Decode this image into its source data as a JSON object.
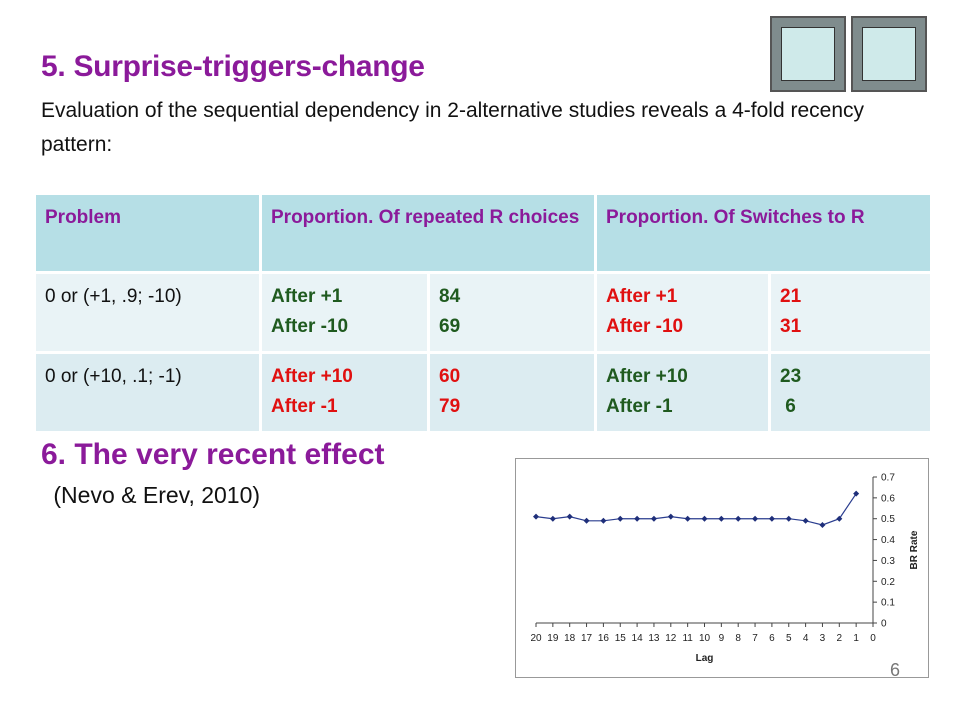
{
  "nav": {
    "prev_label": "",
    "next_label": ""
  },
  "section5": {
    "title": "5. Surprise-triggers-change",
    "intro": "Evaluation of the sequential dependency in 2-alternative studies reveals a 4-fold recency  pattern:"
  },
  "table": {
    "headers": [
      "Problem",
      "Proportion. Of repeated R choices",
      "Proportion. Of Switches to R"
    ],
    "rows": [
      {
        "problem": "0 or (+1, .9; -10)",
        "rep_labels": [
          "After +1",
          "After -10"
        ],
        "rep_values": [
          "84",
          "69"
        ],
        "sw_labels": [
          "After +1",
          "After -10"
        ],
        "sw_values": [
          "21",
          "31"
        ]
      },
      {
        "problem": "0 or (+10, .1; -1)",
        "rep_labels": [
          "After +10",
          "After -1"
        ],
        "rep_values": [
          "60",
          "79"
        ],
        "sw_labels": [
          "After +10",
          "After -1"
        ],
        "sw_values": [
          "23",
          " 6"
        ]
      }
    ]
  },
  "section6": {
    "title": "6. The very recent effect",
    "citation": " (Nevo & Erev, 2010)"
  },
  "slide_number": "6",
  "colors": {
    "heading": "#8b1a9a",
    "dark_green": "#1f5a1f",
    "red": "#e01010",
    "header_bg": "#b6dfe6",
    "line": "#2a3d8f"
  },
  "chart_data": {
    "type": "line",
    "x": [
      20,
      19,
      18,
      17,
      16,
      15,
      14,
      13,
      12,
      11,
      10,
      9,
      8,
      7,
      6,
      5,
      4,
      3,
      2,
      1
    ],
    "values": [
      0.51,
      0.5,
      0.51,
      0.49,
      0.49,
      0.5,
      0.5,
      0.5,
      0.51,
      0.5,
      0.5,
      0.5,
      0.5,
      0.5,
      0.5,
      0.5,
      0.49,
      0.47,
      0.5,
      0.62
    ],
    "xticks": [
      "20",
      "19",
      "18",
      "17",
      "16",
      "15",
      "14",
      "13",
      "12",
      "11",
      "10",
      "9",
      "8",
      "7",
      "6",
      "5",
      "4",
      "3",
      "2",
      "1",
      "0"
    ],
    "yticks": [
      "0",
      "0.1",
      "0.2",
      "0.3",
      "0.4",
      "0.5",
      "0.6",
      "0.7"
    ],
    "xlabel": "Lag",
    "ylabel": "BR Rate",
    "ylim": [
      0,
      0.7
    ],
    "x_order": "descending",
    "y_axis_side": "right",
    "grid": false
  }
}
